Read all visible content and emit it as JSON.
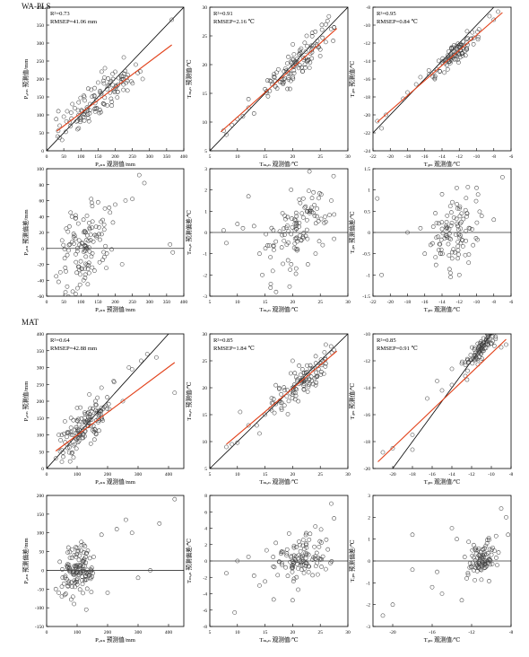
{
  "method_labels": [
    "WA-PLS",
    "MAT"
  ],
  "chart_data": [
    {
      "id": "wapls-p-pred",
      "type": "scatter",
      "xlabel": "Pₐₙₙ 观测值/mm",
      "ylabel": "Pₐₙₙ 预测值/mm",
      "xlim": [
        0,
        400
      ],
      "ylim": [
        0,
        400
      ],
      "xticks": [
        0,
        50,
        100,
        150,
        200,
        250,
        300,
        350,
        400
      ],
      "yticks": [
        0,
        50,
        100,
        150,
        200,
        250,
        300,
        350,
        400
      ],
      "stats": [
        "R²=0.73",
        "RMSEP=41.06 mm"
      ],
      "one_to_one": true,
      "fit": [
        [
          30,
          55
        ],
        [
          365,
          295
        ]
      ],
      "zero_line": false,
      "cluster": {
        "n": 110,
        "xmin": 25,
        "xmax": 290,
        "slope": 0.72,
        "intercept": 34,
        "sd": 26,
        "seed": 11
      },
      "points": [
        [
          28,
          88
        ],
        [
          32,
          40
        ],
        [
          38,
          70
        ],
        [
          45,
          30
        ],
        [
          50,
          95
        ],
        [
          60,
          110
        ],
        [
          75,
          130
        ],
        [
          90,
          60
        ],
        [
          110,
          150
        ],
        [
          130,
          170
        ],
        [
          150,
          190
        ],
        [
          170,
          230
        ],
        [
          200,
          220
        ],
        [
          225,
          260
        ],
        [
          260,
          240
        ],
        [
          280,
          200
        ],
        [
          365,
          365
        ]
      ]
    },
    {
      "id": "wapls-t-pred",
      "type": "scatter",
      "xlabel": "Tₘₐₙ 观测值/℃",
      "ylabel": "Tₘₐₙ 预测值/℃",
      "xlim": [
        5,
        30
      ],
      "ylim": [
        5,
        30
      ],
      "xticks": [
        5,
        10,
        15,
        20,
        25,
        30
      ],
      "yticks": [
        5,
        10,
        15,
        20,
        25,
        30
      ],
      "stats": [
        "R²=0.91",
        "RMSEP=2.16 ℃"
      ],
      "one_to_one": true,
      "fit": [
        [
          7,
          8.3
        ],
        [
          28,
          26.3
        ]
      ],
      "zero_line": false,
      "cluster": {
        "n": 110,
        "xmin": 14,
        "xmax": 28,
        "slope": 0.86,
        "intercept": 2.3,
        "sd": 1.3,
        "seed": 23
      },
      "points": [
        [
          7.5,
          8.5
        ],
        [
          8,
          7.8
        ],
        [
          9,
          9.5
        ],
        [
          10,
          10.5
        ],
        [
          11,
          11
        ],
        [
          12,
          12.5
        ],
        [
          13,
          11.5
        ],
        [
          12,
          14
        ],
        [
          26,
          27
        ],
        [
          27.5,
          26.5
        ]
      ]
    },
    {
      "id": "wapls-mat-pred",
      "type": "scatter",
      "xlabel": "Tᵢₚₛ 观测值/℃",
      "ylabel": "Tᵢₚₛ 预测值/℃",
      "xlim": [
        -22,
        -6
      ],
      "ylim": [
        -24,
        -8
      ],
      "xticks": [
        -22,
        -20,
        -18,
        -16,
        -14,
        -12,
        -10,
        -8,
        -6
      ],
      "yticks": [
        -24,
        -22,
        -20,
        -18,
        -16,
        -14,
        -12,
        -10,
        -8
      ],
      "stats": [
        "R²=0.95",
        "RMSEP=0.84 ℃"
      ],
      "one_to_one": true,
      "fit": [
        [
          -21.5,
          -20.8
        ],
        [
          -7,
          -8.6
        ]
      ],
      "zero_line": false,
      "cluster": {
        "n": 100,
        "xmin": -16,
        "xmax": -9,
        "slope": 0.84,
        "intercept": -2.7,
        "sd": 0.55,
        "seed": 37
      },
      "points": [
        [
          -21.5,
          -20.7
        ],
        [
          -21,
          -21.5
        ],
        [
          -20.5,
          -20
        ],
        [
          -18.5,
          -18.2
        ],
        [
          -18,
          -17.5
        ],
        [
          -17,
          -16.6
        ],
        [
          -16.5,
          -15.8
        ],
        [
          -8,
          -9.4
        ],
        [
          -7.5,
          -8.5
        ],
        [
          -8.5,
          -9
        ]
      ]
    },
    {
      "id": "wapls-p-res",
      "type": "scatter",
      "xlabel": "Pₐₙₙ 预测值/mm",
      "ylabel": "Pₐₙₙ 预测偏差/mm",
      "xlim": [
        0,
        400
      ],
      "ylim": [
        -60,
        100
      ],
      "xticks": [
        0,
        50,
        100,
        150,
        200,
        250,
        300,
        350,
        400
      ],
      "yticks": [
        -60,
        -40,
        -20,
        0,
        20,
        40,
        60,
        80,
        100
      ],
      "stats": [],
      "one_to_one": false,
      "fit": null,
      "zero_line": true,
      "cluster": {
        "n": 110,
        "xmin": 30,
        "xmax": 200,
        "slope": 0.12,
        "intercept": -12,
        "sd": 22,
        "seed": 41
      },
      "points": [
        [
          28,
          -35
        ],
        [
          35,
          -42
        ],
        [
          40,
          -30
        ],
        [
          45,
          10
        ],
        [
          55,
          -55
        ],
        [
          60,
          -48
        ],
        [
          70,
          45
        ],
        [
          85,
          38
        ],
        [
          90,
          -50
        ],
        [
          120,
          -45
        ],
        [
          130,
          62
        ],
        [
          150,
          58
        ],
        [
          170,
          50
        ],
        [
          185,
          45
        ],
        [
          200,
          55
        ],
        [
          220,
          -20
        ],
        [
          230,
          60
        ],
        [
          250,
          62
        ],
        [
          270,
          92
        ],
        [
          285,
          82
        ],
        [
          360,
          5
        ],
        [
          368,
          -5
        ]
      ]
    },
    {
      "id": "wapls-t-res",
      "type": "scatter",
      "xlabel": "Tₘₐₙ 观测值/℃",
      "ylabel": "Tₘₐₙ 预测偏差/℃",
      "xlim": [
        5,
        30
      ],
      "ylim": [
        -3,
        3
      ],
      "xticks": [
        5,
        10,
        15,
        20,
        25,
        30
      ],
      "yticks": [
        -3,
        -2,
        -1,
        0,
        1,
        2,
        3
      ],
      "stats": [],
      "one_to_one": false,
      "fit": null,
      "zero_line": true,
      "cluster": {
        "n": 110,
        "xmin": 14,
        "xmax": 28,
        "slope": 0.17,
        "intercept": -3.3,
        "sd": 0.9,
        "seed": 53
      },
      "points": [
        [
          7.5,
          0.1
        ],
        [
          8,
          -0.5
        ],
        [
          10,
          0.4
        ],
        [
          11,
          0.2
        ],
        [
          12,
          1.7
        ],
        [
          13,
          0.3
        ],
        [
          14,
          -1
        ],
        [
          14.5,
          -2
        ],
        [
          16,
          -2.6
        ],
        [
          17,
          -2.8
        ],
        [
          26,
          0.5
        ],
        [
          27,
          1.5
        ],
        [
          27.5,
          -0.3
        ]
      ]
    },
    {
      "id": "wapls-mat-res",
      "type": "scatter",
      "xlabel": "Tᵢₚₛ 观测值/℃",
      "ylabel": "Tᵢₚₛ 预测偏差/℃",
      "xlim": [
        -22,
        -6
      ],
      "ylim": [
        -1.5,
        1.5
      ],
      "xticks": [
        -22,
        -20,
        -18,
        -16,
        -14,
        -12,
        -10,
        -8,
        -6
      ],
      "yticks": [
        -1.5,
        -1,
        -0.5,
        0,
        0.5,
        1,
        1.5
      ],
      "stats": [],
      "one_to_one": false,
      "fit": null,
      "zero_line": true,
      "cluster": {
        "n": 100,
        "xmin": -15.5,
        "xmax": -9,
        "slope": 0.05,
        "intercept": 0.55,
        "sd": 0.42,
        "seed": 67
      },
      "points": [
        [
          -21.5,
          0.8
        ],
        [
          -21,
          -1
        ],
        [
          -18,
          0
        ],
        [
          -16.5,
          0.1
        ],
        [
          -16,
          -0.5
        ],
        [
          -14,
          0.9
        ],
        [
          -13,
          -1.05
        ],
        [
          -12,
          -1
        ],
        [
          -10,
          1.05
        ],
        [
          -8,
          0.3
        ],
        [
          -7,
          1.3
        ]
      ]
    },
    {
      "id": "mat-p-pred",
      "type": "scatter",
      "xlabel": "Pₐₙₙ 观测值/mm",
      "ylabel": "Pₐₙₙ 预测值/mm",
      "xlim": [
        0,
        450
      ],
      "ylim": [
        0,
        400
      ],
      "xticks": [
        0,
        100,
        200,
        300,
        400
      ],
      "yticks": [
        0,
        50,
        100,
        150,
        200,
        250,
        300,
        350,
        400
      ],
      "stats": [
        "R²=0.64",
        "RMSEP=42.88 mm"
      ],
      "one_to_one": true,
      "fit": [
        [
          30,
          52
        ],
        [
          420,
          315
        ]
      ],
      "zero_line": false,
      "cluster": {
        "n": 130,
        "xmin": 25,
        "xmax": 230,
        "slope": 0.7,
        "intercept": 33,
        "sd": 30,
        "seed": 71
      },
      "points": [
        [
          30,
          30
        ],
        [
          40,
          100
        ],
        [
          50,
          20
        ],
        [
          60,
          140
        ],
        [
          80,
          150
        ],
        [
          100,
          180
        ],
        [
          140,
          220
        ],
        [
          160,
          200
        ],
        [
          180,
          240
        ],
        [
          220,
          260
        ],
        [
          250,
          200
        ],
        [
          270,
          300
        ],
        [
          280,
          295
        ],
        [
          310,
          320
        ],
        [
          330,
          340
        ],
        [
          360,
          330
        ],
        [
          420,
          225
        ]
      ]
    },
    {
      "id": "mat-t-pred",
      "type": "scatter",
      "xlabel": "Tₘₐₙ 观测值/℃",
      "ylabel": "Tₘₐₙ 预测值/℃",
      "xlim": [
        5,
        30
      ],
      "ylim": [
        5,
        30
      ],
      "xticks": [
        5,
        10,
        15,
        20,
        25,
        30
      ],
      "yticks": [
        5,
        10,
        15,
        20,
        25,
        30
      ],
      "stats": [
        "R²=0.85",
        "RMSEP=1.84 ℃"
      ],
      "one_to_one": true,
      "fit": [
        [
          8,
          9.5
        ],
        [
          28,
          26.8
        ]
      ],
      "zero_line": false,
      "cluster": {
        "n": 110,
        "xmin": 15,
        "xmax": 28,
        "slope": 0.85,
        "intercept": 2.6,
        "sd": 1.4,
        "seed": 83
      },
      "points": [
        [
          8,
          9
        ],
        [
          9,
          9.5
        ],
        [
          10,
          9.8
        ],
        [
          10.5,
          15.5
        ],
        [
          12,
          13
        ],
        [
          13.5,
          13
        ],
        [
          14,
          11.5
        ],
        [
          15,
          15
        ],
        [
          20,
          25
        ],
        [
          26,
          28
        ],
        [
          27.5,
          27
        ]
      ]
    },
    {
      "id": "mat-mat-pred",
      "type": "scatter",
      "xlabel": "Tᵢₚₛ 观测值/℃",
      "ylabel": "Tᵢₚₛ 预测值/℃",
      "xlim": [
        -22,
        -8
      ],
      "ylim": [
        -20,
        -10
      ],
      "xticks": [
        -20,
        -18,
        -16,
        -14,
        -12,
        -10,
        -8
      ],
      "yticks": [
        -20,
        -18,
        -16,
        -14,
        -12,
        -10
      ],
      "stats": [
        "R²=0.85",
        "RMSEP=0.91 ℃"
      ],
      "one_to_one": true,
      "fit": [
        [
          -21.5,
          -19.5
        ],
        [
          -8.5,
          -10.4
        ]
      ],
      "zero_line": false,
      "cluster": {
        "n": 95,
        "xmin": -13,
        "xmax": -9,
        "slope": 0.78,
        "intercept": -2.5,
        "sd": 0.4,
        "seed": 97
      },
      "points": [
        [
          -21,
          -18.8
        ],
        [
          -20,
          -18.5
        ],
        [
          -18,
          -17.5
        ],
        [
          -18,
          -18.6
        ],
        [
          -16.5,
          -14.8
        ],
        [
          -15.5,
          -13.5
        ],
        [
          -15,
          -14.2
        ],
        [
          -14,
          -13.8
        ],
        [
          -14,
          -12.6
        ],
        [
          -13,
          -12.2
        ],
        [
          -9,
          -11
        ],
        [
          -8.5,
          -10.8
        ]
      ]
    },
    {
      "id": "mat-p-res",
      "type": "scatter",
      "xlabel": "Pₐₙₙ 预测值/mm",
      "ylabel": "Pₐₙₙ 预测偏差/mm",
      "xlim": [
        0,
        450
      ],
      "ylim": [
        -150,
        200
      ],
      "xticks": [
        0,
        100,
        200,
        300,
        400
      ],
      "yticks": [
        -150,
        -100,
        -50,
        0,
        50,
        100,
        150,
        200
      ],
      "stats": [],
      "one_to_one": false,
      "fit": null,
      "zero_line": true,
      "cluster": {
        "n": 130,
        "xmin": 40,
        "xmax": 170,
        "slope": 0.08,
        "intercept": -8,
        "sd": 32,
        "seed": 101
      },
      "points": [
        [
          30,
          -50
        ],
        [
          40,
          -60
        ],
        [
          50,
          -70
        ],
        [
          90,
          -90
        ],
        [
          100,
          60
        ],
        [
          130,
          -105
        ],
        [
          180,
          95
        ],
        [
          200,
          -60
        ],
        [
          230,
          110
        ],
        [
          260,
          135
        ],
        [
          280,
          100
        ],
        [
          300,
          -20
        ],
        [
          340,
          0
        ],
        [
          370,
          125
        ],
        [
          420,
          190
        ]
      ]
    },
    {
      "id": "mat-t-res",
      "type": "scatter",
      "xlabel": "Tₘₐₙ 观测值/℃",
      "ylabel": "Tₘₐₙ 预测偏差/℃",
      "xlim": [
        5,
        30
      ],
      "ylim": [
        -8,
        8
      ],
      "xticks": [
        5,
        10,
        15,
        20,
        25,
        30
      ],
      "yticks": [
        -8,
        -6,
        -4,
        -2,
        0,
        2,
        4,
        6,
        8
      ],
      "stats": [],
      "one_to_one": false,
      "fit": null,
      "zero_line": true,
      "cluster": {
        "n": 110,
        "xmin": 15,
        "xmax": 28,
        "slope": 0.1,
        "intercept": -1.8,
        "sd": 1.3,
        "seed": 113
      },
      "points": [
        [
          8,
          -1.5
        ],
        [
          9.5,
          -6.3
        ],
        [
          10,
          0
        ],
        [
          12,
          0.5
        ],
        [
          13,
          -1.8
        ],
        [
          14,
          -3
        ],
        [
          15,
          -2.5
        ],
        [
          27,
          7
        ],
        [
          27.5,
          5.2
        ],
        [
          26,
          -1
        ],
        [
          20,
          -4.8
        ],
        [
          21,
          -3.5
        ]
      ]
    },
    {
      "id": "mat-mat-res",
      "type": "scatter",
      "xlabel": "Tᵢₚₛ 观测值/℃",
      "ylabel": "Tᵢₚₛ 预测偏差/℃",
      "xlim": [
        -22,
        -8
      ],
      "ylim": [
        -3,
        3
      ],
      "xticks": [
        -20,
        -16,
        -12,
        -8
      ],
      "yticks": [
        -3,
        -2,
        -1,
        0,
        1,
        2,
        3
      ],
      "stats": [],
      "one_to_one": false,
      "fit": null,
      "zero_line": true,
      "cluster": {
        "n": 95,
        "xmin": -13,
        "xmax": -9,
        "slope": 0.2,
        "intercept": 2.2,
        "sd": 0.4,
        "seed": 127
      },
      "points": [
        [
          -21,
          -2.5
        ],
        [
          -20,
          -2
        ],
        [
          -18,
          1.2
        ],
        [
          -18,
          -0.4
        ],
        [
          -16,
          -1.2
        ],
        [
          -15.5,
          -0.5
        ],
        [
          -15,
          -1.5
        ],
        [
          -14,
          1.5
        ],
        [
          -13.5,
          1
        ],
        [
          -13,
          -1.8
        ],
        [
          -12.5,
          -0.8
        ],
        [
          -9,
          2.4
        ],
        [
          -8.5,
          2
        ],
        [
          -8.3,
          1.2
        ]
      ]
    }
  ]
}
